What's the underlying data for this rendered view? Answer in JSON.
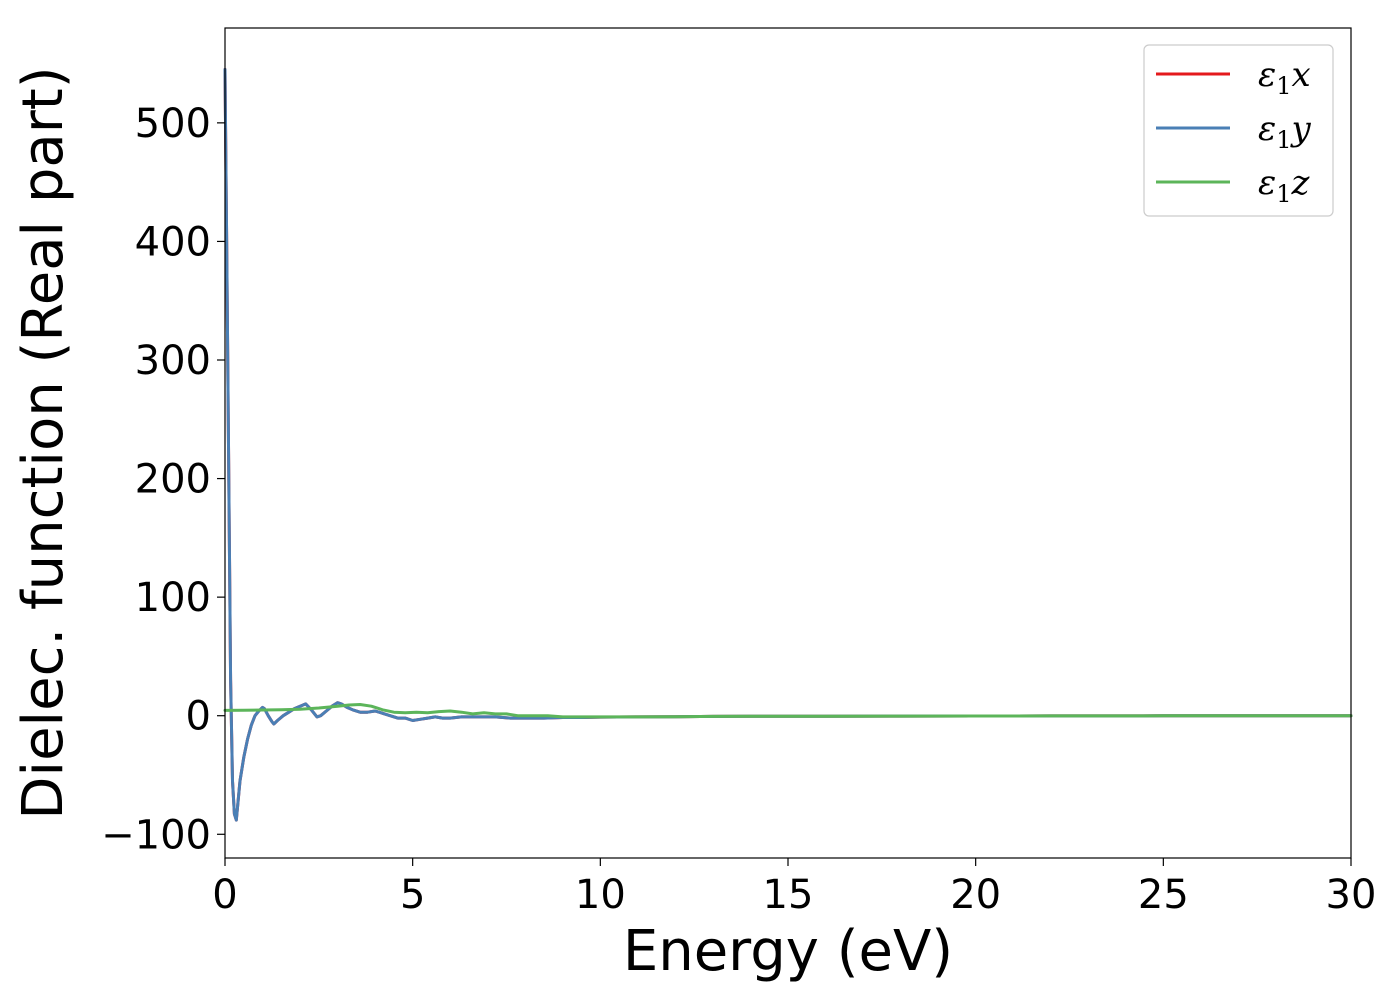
{
  "chart_data": {
    "type": "line",
    "xlabel": "Energy (eV)",
    "ylabel": "Dielec. function (Real part)",
    "xlim": [
      0,
      30
    ],
    "ylim": [
      -120,
      580
    ],
    "xticks": [
      0,
      5,
      10,
      15,
      20,
      25,
      30
    ],
    "yticks": [
      -100,
      0,
      100,
      200,
      300,
      400,
      500
    ],
    "ytick_labels": [
      "−100",
      "0",
      "100",
      "200",
      "300",
      "400",
      "500"
    ],
    "legend_position": "top-right",
    "grid": false,
    "series": [
      {
        "name": "ε1x",
        "legend_base": "ε",
        "legend_sub": "1",
        "legend_suffix": "x",
        "color": "#e41a1c",
        "x": [
          0.0,
          0.05,
          0.1,
          0.15,
          0.2,
          0.25,
          0.3,
          0.35,
          0.4,
          0.5,
          0.6,
          0.7,
          0.8,
          0.9,
          1.0,
          1.05,
          1.15,
          1.25,
          1.3,
          1.4,
          1.55,
          1.7,
          1.85,
          2.0,
          2.15,
          2.3,
          2.45,
          2.55,
          2.7,
          2.85,
          3.0,
          3.1,
          3.25,
          3.4,
          3.6,
          3.8,
          4.0,
          4.2,
          4.4,
          4.6,
          4.8,
          5.0,
          5.2,
          5.4,
          5.6,
          5.8,
          6.0,
          6.3,
          6.6,
          6.9,
          7.2,
          7.6,
          8.0,
          8.5,
          9.0,
          9.5,
          10.0,
          11.0,
          12.0,
          13.0,
          14.0,
          16.0,
          18.0,
          20.0,
          22.0,
          25.0,
          28.0,
          30.0
        ],
        "y": [
          545,
          380,
          200,
          30,
          -55,
          -83,
          -88,
          -72,
          -55,
          -35,
          -20,
          -8,
          0,
          4,
          7,
          6,
          0,
          -5,
          -7,
          -4,
          0,
          3,
          6,
          8,
          10,
          5,
          -1,
          0,
          4,
          8,
          11,
          10,
          7,
          5,
          3,
          3,
          4,
          2,
          0,
          -2,
          -2,
          -4,
          -3,
          -2,
          -1,
          -2,
          -2,
          -1,
          -1,
          -1,
          -1,
          -2,
          -2,
          -2,
          -1.5,
          -1.5,
          -1.2,
          -1,
          -0.8,
          -0.6,
          -0.5,
          -0.4,
          -0.3,
          -0.2,
          -0.15,
          -0.1,
          -0.05,
          -0.05
        ]
      },
      {
        "name": "ε1y",
        "legend_base": "ε",
        "legend_sub": "1",
        "legend_suffix": "y",
        "color": "#4a7fb5",
        "x": [
          0.0,
          0.05,
          0.1,
          0.15,
          0.2,
          0.25,
          0.3,
          0.35,
          0.4,
          0.5,
          0.6,
          0.7,
          0.8,
          0.9,
          1.0,
          1.05,
          1.15,
          1.25,
          1.3,
          1.4,
          1.55,
          1.7,
          1.85,
          2.0,
          2.15,
          2.3,
          2.45,
          2.55,
          2.7,
          2.85,
          3.0,
          3.1,
          3.25,
          3.4,
          3.6,
          3.8,
          4.0,
          4.2,
          4.4,
          4.6,
          4.8,
          5.0,
          5.2,
          5.4,
          5.6,
          5.8,
          6.0,
          6.3,
          6.6,
          6.9,
          7.2,
          7.6,
          8.0,
          8.5,
          9.0,
          9.5,
          10.0,
          11.0,
          12.0,
          13.0,
          14.0,
          16.0,
          18.0,
          20.0,
          22.0,
          25.0,
          28.0,
          30.0
        ],
        "y": [
          545,
          380,
          200,
          30,
          -55,
          -83,
          -88,
          -72,
          -55,
          -35,
          -20,
          -8,
          0,
          4,
          7,
          6,
          0,
          -5,
          -7,
          -4,
          0,
          3,
          6,
          8,
          10,
          5,
          -1,
          0,
          4,
          8,
          11,
          10,
          7,
          5,
          3,
          3,
          4,
          2,
          0,
          -2,
          -2,
          -4,
          -3,
          -2,
          -1,
          -2,
          -2,
          -1,
          -1,
          -1,
          -1,
          -2,
          -2,
          -2,
          -1.5,
          -1.5,
          -1.2,
          -1,
          -0.8,
          -0.6,
          -0.5,
          -0.4,
          -0.3,
          -0.2,
          -0.15,
          -0.1,
          -0.05,
          -0.05
        ]
      },
      {
        "name": "ε1z",
        "legend_base": "ε",
        "legend_sub": "1",
        "legend_suffix": "z",
        "color": "#5cb55a",
        "x": [
          0.0,
          0.5,
          1.0,
          1.5,
          2.0,
          2.5,
          3.0,
          3.3,
          3.6,
          3.9,
          4.2,
          4.5,
          4.8,
          5.1,
          5.4,
          5.7,
          6.0,
          6.3,
          6.6,
          6.9,
          7.2,
          7.5,
          7.8,
          8.2,
          8.6,
          9.0,
          9.5,
          10.0,
          11.0,
          12.0,
          13.0,
          14.0,
          16.0,
          18.0,
          20.0,
          22.0,
          25.0,
          28.0,
          30.0
        ],
        "y": [
          4.5,
          4.6,
          4.8,
          5.0,
          5.5,
          6.5,
          8,
          9,
          9.5,
          8,
          5,
          3,
          2.5,
          3,
          2.5,
          3.5,
          4,
          3,
          1.5,
          2.5,
          1.5,
          1.5,
          0,
          0,
          0,
          -1,
          -1,
          -1,
          -1,
          -0.8,
          -0.6,
          -0.5,
          -0.4,
          -0.3,
          -0.2,
          -0.15,
          -0.1,
          -0.05,
          -0.05
        ]
      }
    ]
  }
}
